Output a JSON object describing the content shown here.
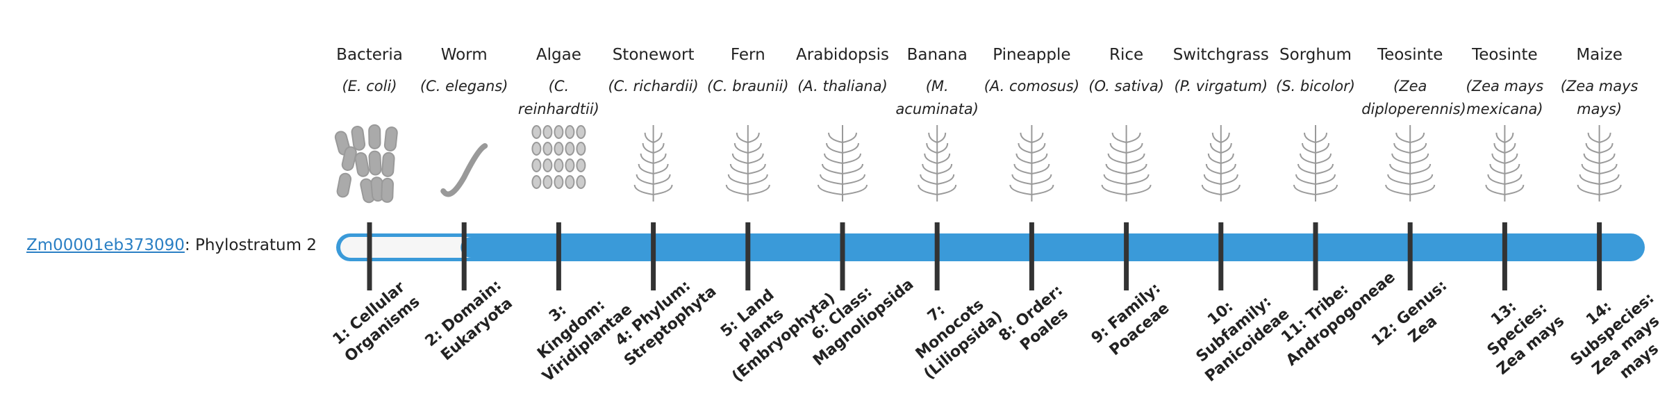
{
  "gene": {
    "id": "Zm00001eb373090",
    "separator": ":",
    "label": "Phylostratum",
    "phylostratum": 2
  },
  "taxa": [
    {
      "name": "Bacteria",
      "species": "(E. coli)",
      "stratum": "1: Cellular Organisms"
    },
    {
      "name": "Worm",
      "species": "(C. elegans)",
      "stratum": "2: Domain: Eukaryota"
    },
    {
      "name": "Algae",
      "species": "(C. reinhardtii)",
      "stratum": "3: Kingdom: Viridiplantae"
    },
    {
      "name": "Stonewort",
      "species": "(C. richardii)",
      "stratum": "4: Phylum: Streptophyta"
    },
    {
      "name": "Fern",
      "species": "(C. braunii)",
      "stratum": "5: Land plants (Embryophyta)"
    },
    {
      "name": "Arabidopsis",
      "species": "(A. thaliana)",
      "stratum": "6: Class: Magnoliopsida"
    },
    {
      "name": "Banana",
      "species": "(M. acuminata)",
      "stratum": "7: Monocots (Liliopsida)"
    },
    {
      "name": "Pineapple",
      "species": "(A. comosus)",
      "stratum": "8: Order: Poales"
    },
    {
      "name": "Rice",
      "species": "(O. sativa)",
      "stratum": "9: Family: Poaceae"
    },
    {
      "name": "Switchgrass",
      "species": "(P. virgatum)",
      "stratum": "10: Subfamily: Panicoideae"
    },
    {
      "name": "Sorghum",
      "species": "(S. bicolor)",
      "stratum": "11: Tribe: Andropogoneae"
    },
    {
      "name": "Teosinte",
      "species": "(Zea diploperennis)",
      "stratum": "12: Genus: Zea"
    },
    {
      "name": "Teosinte",
      "species": "(Zea mays mexicana)",
      "stratum": "13: Species: Zea mays"
    },
    {
      "name": "Maize",
      "species": "(Zea mays mays)",
      "stratum": "14: Subspecies: Zea mays mays"
    }
  ]
}
